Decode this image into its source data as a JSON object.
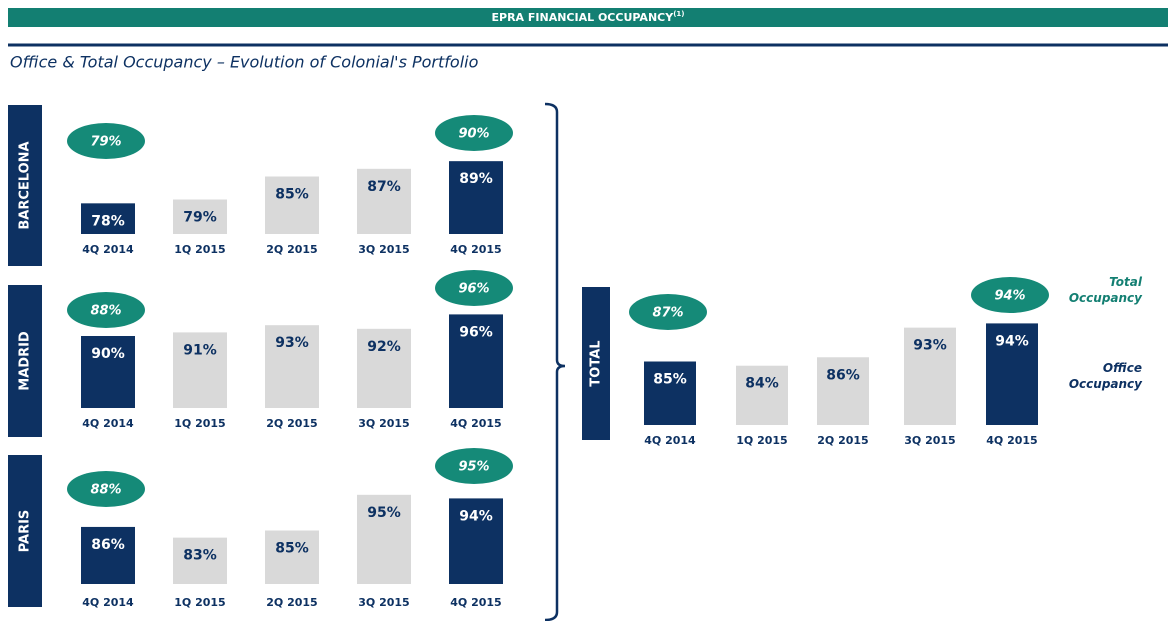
{
  "header": {
    "title": "EPRA FINANCIAL OCCUPANCY",
    "superscript": "(1)"
  },
  "subtitle": "Office & Total Occupancy – Evolution of Colonial's Portfolio",
  "legend": {
    "total": "Total Occupancy",
    "office": "Office Occupancy"
  },
  "chart_data": [
    {
      "type": "bar",
      "title": "BARCELONA",
      "categories": [
        "4Q 2014",
        "1Q 2015",
        "2Q 2015",
        "3Q 2015",
        "4Q 2015"
      ],
      "values": [
        78,
        79,
        85,
        87,
        89
      ],
      "value_labels": [
        "78%",
        "79%",
        "85%",
        "87%",
        "89%"
      ],
      "colors": [
        "#0d3162",
        "#d9d9d9",
        "#d9d9d9",
        "#d9d9d9",
        "#0d3162"
      ],
      "bubbles": [
        79,
        null,
        null,
        null,
        90
      ],
      "bubble_labels": [
        "79%",
        null,
        null,
        null,
        "90%"
      ],
      "ylim": [
        70,
        100
      ]
    },
    {
      "type": "bar",
      "title": "MADRID",
      "categories": [
        "4Q 2014",
        "1Q 2015",
        "2Q 2015",
        "3Q 2015",
        "4Q 2015"
      ],
      "values": [
        90,
        91,
        93,
        92,
        96
      ],
      "value_labels": [
        "90%",
        "91%",
        "93%",
        "92%",
        "96%"
      ],
      "colors": [
        "#0d3162",
        "#d9d9d9",
        "#d9d9d9",
        "#d9d9d9",
        "#0d3162"
      ],
      "bubbles": [
        88,
        null,
        null,
        null,
        96
      ],
      "bubble_labels": [
        "88%",
        null,
        null,
        null,
        "96%"
      ],
      "ylim": [
        70,
        100
      ]
    },
    {
      "type": "bar",
      "title": "PARIS",
      "categories": [
        "4Q 2014",
        "1Q 2015",
        "2Q 2015",
        "3Q 2015",
        "4Q 2015"
      ],
      "values": [
        86,
        83,
        85,
        95,
        94
      ],
      "value_labels": [
        "86%",
        "83%",
        "85%",
        "95%",
        "94%"
      ],
      "colors": [
        "#0d3162",
        "#d9d9d9",
        "#d9d9d9",
        "#d9d9d9",
        "#0d3162"
      ],
      "bubbles": [
        88,
        null,
        null,
        null,
        95
      ],
      "bubble_labels": [
        "88%",
        null,
        null,
        null,
        "95%"
      ],
      "ylim": [
        70,
        100
      ]
    },
    {
      "type": "bar",
      "title": "TOTAL",
      "categories": [
        "4Q 2014",
        "1Q 2015",
        "2Q 2015",
        "3Q 2015",
        "4Q 2015"
      ],
      "values": [
        85,
        84,
        86,
        93,
        94
      ],
      "value_labels": [
        "85%",
        "84%",
        "86%",
        "93%",
        "94%"
      ],
      "colors": [
        "#0d3162",
        "#d9d9d9",
        "#d9d9d9",
        "#d9d9d9",
        "#0d3162"
      ],
      "bubbles": [
        87,
        null,
        null,
        null,
        94
      ],
      "bubble_labels": [
        "87%",
        null,
        null,
        null,
        "94%"
      ],
      "ylim": [
        70,
        100
      ]
    }
  ]
}
